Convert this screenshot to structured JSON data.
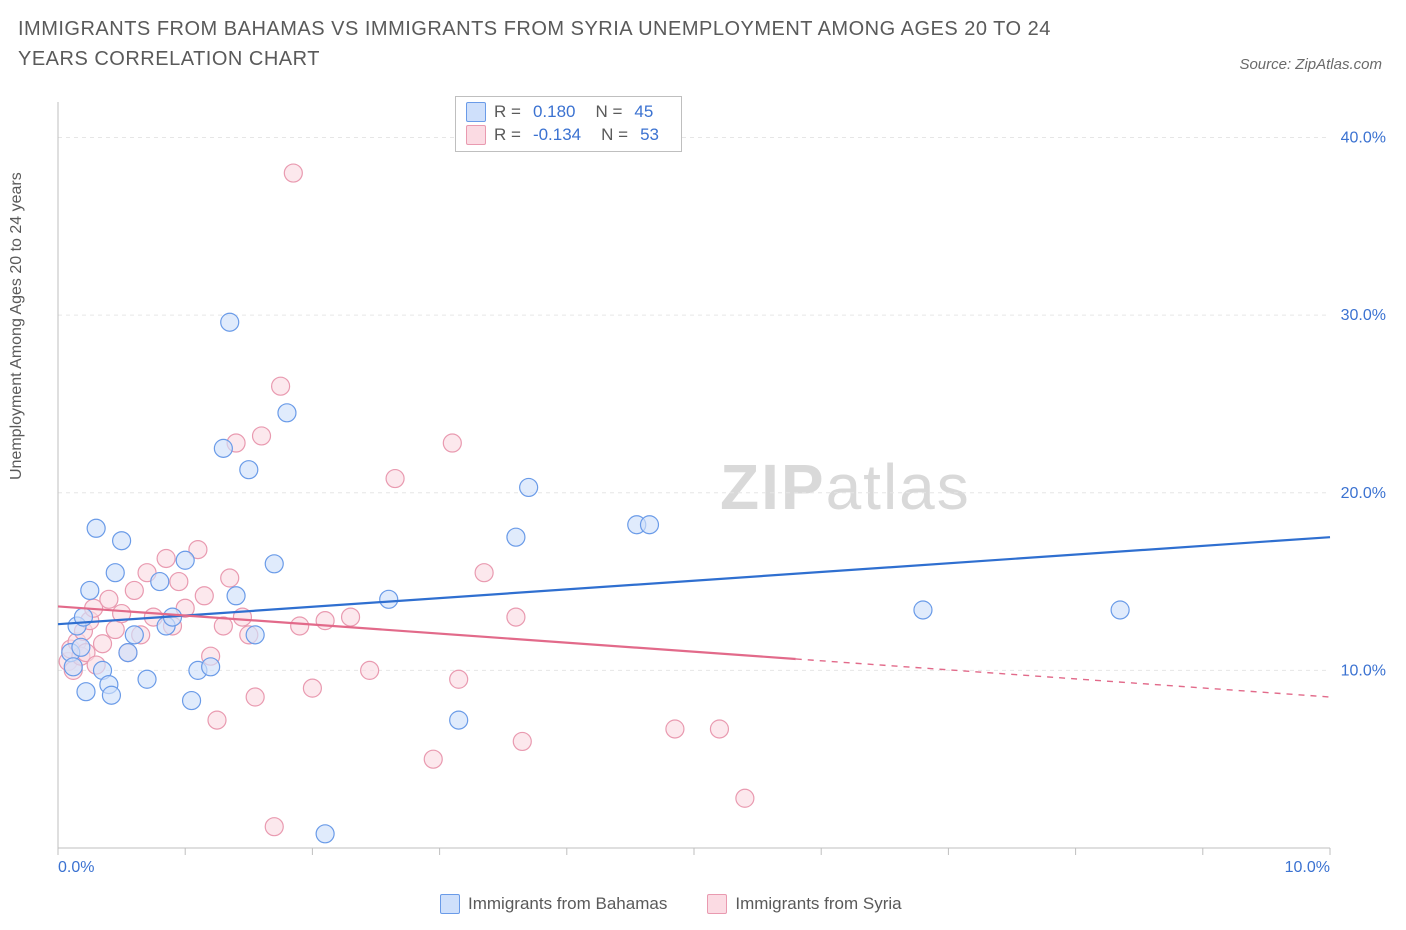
{
  "title": "IMMIGRANTS FROM BAHAMAS VS IMMIGRANTS FROM SYRIA UNEMPLOYMENT AMONG AGES 20 TO 24 YEARS CORRELATION CHART",
  "source_label": "Source: ZipAtlas.com",
  "y_axis_label": "Unemployment Among Ages 20 to 24 years",
  "watermark_a": "ZIP",
  "watermark_b": "atlas",
  "chart": {
    "type": "scatter-with-trend",
    "xlim": [
      0,
      10
    ],
    "ylim": [
      0,
      42
    ],
    "x_ticks": [
      0,
      1,
      2,
      3,
      4,
      5,
      6,
      7,
      8,
      9,
      10
    ],
    "x_tick_labels": {
      "0": "0.0%",
      "10": "10.0%"
    },
    "y_ticks": [
      10,
      20,
      30,
      40
    ],
    "y_tick_labels": {
      "10": "10.0%",
      "20": "20.0%",
      "30": "30.0%",
      "40": "40.0%"
    },
    "grid_color": "#e6e6e6",
    "axis_color": "#bfbfbf",
    "background_color": "#ffffff",
    "marker_radius": 9,
    "marker_stroke_width": 1.2,
    "trend_line_width": 2.2,
    "series": [
      {
        "name": "Immigrants from Bahamas",
        "color_fill": "#cfe0fb",
        "color_stroke": "#6a9be8",
        "trend_color": "#2f6fd0",
        "trend": {
          "x0": 0,
          "y0": 12.6,
          "x1": 10,
          "y1": 17.5,
          "solid_until_x": 10
        },
        "stats": {
          "R": "0.180",
          "N": "45"
        },
        "points": [
          [
            0.1,
            11.0
          ],
          [
            0.12,
            10.2
          ],
          [
            0.15,
            12.5
          ],
          [
            0.18,
            11.3
          ],
          [
            0.2,
            13.0
          ],
          [
            0.22,
            8.8
          ],
          [
            0.25,
            14.5
          ],
          [
            0.3,
            18.0
          ],
          [
            0.35,
            10.0
          ],
          [
            0.4,
            9.2
          ],
          [
            0.42,
            8.6
          ],
          [
            0.45,
            15.5
          ],
          [
            0.5,
            17.3
          ],
          [
            0.55,
            11.0
          ],
          [
            0.6,
            12.0
          ],
          [
            0.7,
            9.5
          ],
          [
            0.8,
            15.0
          ],
          [
            0.85,
            12.5
          ],
          [
            0.9,
            13.0
          ],
          [
            1.0,
            16.2
          ],
          [
            1.05,
            8.3
          ],
          [
            1.1,
            10.0
          ],
          [
            1.2,
            10.2
          ],
          [
            1.3,
            22.5
          ],
          [
            1.35,
            29.6
          ],
          [
            1.4,
            14.2
          ],
          [
            1.5,
            21.3
          ],
          [
            1.55,
            12.0
          ],
          [
            1.7,
            16.0
          ],
          [
            1.8,
            24.5
          ],
          [
            2.1,
            0.8
          ],
          [
            2.6,
            14.0
          ],
          [
            3.15,
            7.2
          ],
          [
            3.6,
            17.5
          ],
          [
            3.7,
            20.3
          ],
          [
            4.55,
            18.2
          ],
          [
            4.65,
            18.2
          ],
          [
            6.8,
            13.4
          ],
          [
            8.35,
            13.4
          ]
        ]
      },
      {
        "name": "Immigrants from Syria",
        "color_fill": "#fbdbe3",
        "color_stroke": "#e99ab0",
        "trend_color": "#e26a8a",
        "trend": {
          "x0": 0,
          "y0": 13.6,
          "x1": 10,
          "y1": 8.5,
          "solid_until_x": 5.8
        },
        "stats": {
          "R": "-0.134",
          "N": "53"
        },
        "points": [
          [
            0.08,
            10.5
          ],
          [
            0.1,
            11.2
          ],
          [
            0.12,
            10.0
          ],
          [
            0.15,
            11.6
          ],
          [
            0.18,
            10.8
          ],
          [
            0.2,
            12.2
          ],
          [
            0.22,
            11.0
          ],
          [
            0.25,
            12.8
          ],
          [
            0.28,
            13.5
          ],
          [
            0.3,
            10.3
          ],
          [
            0.35,
            11.5
          ],
          [
            0.4,
            14.0
          ],
          [
            0.45,
            12.3
          ],
          [
            0.5,
            13.2
          ],
          [
            0.55,
            11.0
          ],
          [
            0.6,
            14.5
          ],
          [
            0.65,
            12.0
          ],
          [
            0.7,
            15.5
          ],
          [
            0.75,
            13.0
          ],
          [
            0.85,
            16.3
          ],
          [
            0.9,
            12.5
          ],
          [
            0.95,
            15.0
          ],
          [
            1.0,
            13.5
          ],
          [
            1.1,
            16.8
          ],
          [
            1.15,
            14.2
          ],
          [
            1.2,
            10.8
          ],
          [
            1.25,
            7.2
          ],
          [
            1.3,
            12.5
          ],
          [
            1.35,
            15.2
          ],
          [
            1.4,
            22.8
          ],
          [
            1.45,
            13.0
          ],
          [
            1.5,
            12.0
          ],
          [
            1.55,
            8.5
          ],
          [
            1.6,
            23.2
          ],
          [
            1.7,
            1.2
          ],
          [
            1.75,
            26.0
          ],
          [
            1.85,
            38.0
          ],
          [
            1.9,
            12.5
          ],
          [
            2.0,
            9.0
          ],
          [
            2.1,
            12.8
          ],
          [
            2.3,
            13.0
          ],
          [
            2.45,
            10.0
          ],
          [
            2.65,
            20.8
          ],
          [
            2.95,
            5.0
          ],
          [
            3.1,
            22.8
          ],
          [
            3.15,
            9.5
          ],
          [
            3.35,
            15.5
          ],
          [
            3.6,
            13.0
          ],
          [
            3.65,
            6.0
          ],
          [
            4.85,
            6.7
          ],
          [
            5.2,
            6.7
          ],
          [
            5.4,
            2.8
          ]
        ]
      }
    ]
  },
  "legend_top": {
    "r_label": "R = ",
    "n_label": "N = "
  },
  "legend_bottom": {
    "items": [
      "Immigrants from Bahamas",
      "Immigrants from Syria"
    ]
  }
}
